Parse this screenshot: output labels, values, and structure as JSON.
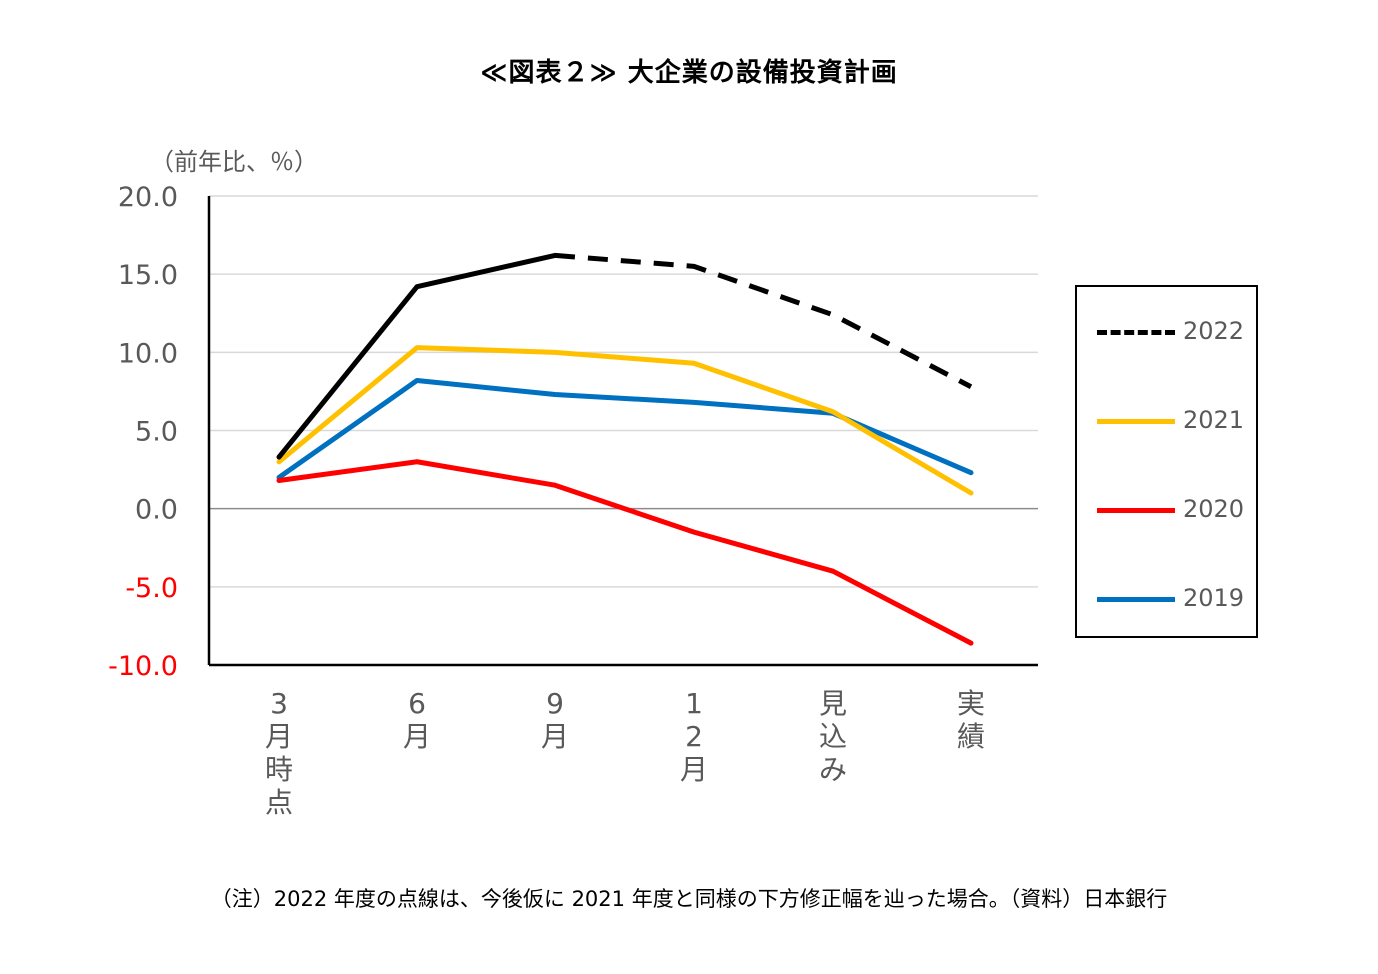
{
  "title": "≪図表２≫ 大企業の設備投資計画",
  "unit_label": "（前年比、％）",
  "note": "（注）2022 年度の点線は、今後仮に 2021 年度と同様の下方修正幅を辿った場合。（資料）日本銀行",
  "chart_data": {
    "type": "line",
    "title": "≪図表２≫ 大企業の設備投資計画",
    "ylabel": "（前年比、％）",
    "ylim": [
      -10,
      20
    ],
    "yticks": [
      "20.0",
      "15.0",
      "10.0",
      "5.0",
      "0.0",
      "-5.0",
      "-10.0"
    ],
    "ytick_values": [
      20,
      15,
      10,
      5,
      0,
      -5,
      -10
    ],
    "negative_tick_color": "#ff0000",
    "categories": [
      "3月時点",
      "6月",
      "9月",
      "12月",
      "見込み",
      "実績"
    ],
    "category_glyphs": [
      [
        "3",
        "月",
        "時",
        "点"
      ],
      [
        "6",
        "月"
      ],
      [
        "9",
        "月"
      ],
      [
        "1",
        "2",
        "月"
      ],
      [
        "見",
        "込",
        "み"
      ],
      [
        "実",
        "績"
      ]
    ],
    "grid": true,
    "legend_placement": "right",
    "series": [
      {
        "name": "2022",
        "color": "#000000",
        "values": [
          3.3,
          14.2,
          16.2,
          15.5,
          12.4,
          7.8
        ],
        "solid_points": 3,
        "dashed_from": 2
      },
      {
        "name": "2021",
        "color": "#ffc000",
        "values": [
          3.0,
          10.3,
          10.0,
          9.3,
          6.2,
          1.0
        ]
      },
      {
        "name": "2020",
        "color": "#ff0000",
        "values": [
          1.8,
          3.0,
          1.5,
          -1.5,
          -4.0,
          -8.6
        ]
      },
      {
        "name": "2019",
        "color": "#0070c0",
        "values": [
          2.0,
          8.2,
          7.3,
          6.8,
          6.1,
          2.3
        ]
      }
    ]
  }
}
